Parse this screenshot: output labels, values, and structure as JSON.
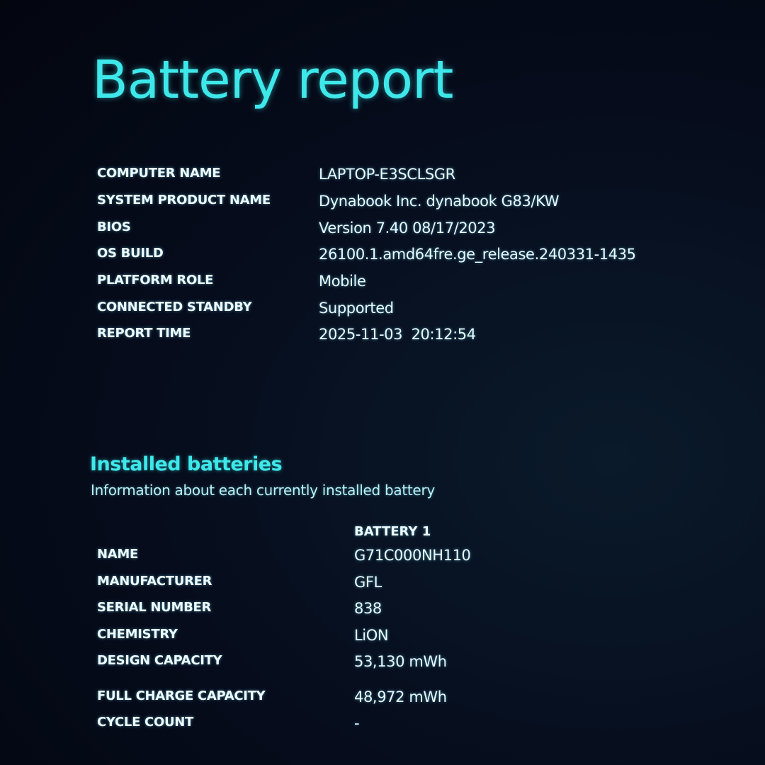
{
  "title": "Battery report",
  "system_info": [
    {
      "label": "COMPUTER NAME",
      "value": "LAPTOP-E3SCLSGR"
    },
    {
      "label": "SYSTEM PRODUCT NAME",
      "value": "Dynabook Inc. dynabook G83/KW"
    },
    {
      "label": "BIOS",
      "value": "Version 7.40 08/17/2023"
    },
    {
      "label": "OS BUILD",
      "value": "26100.1.amd64fre.ge_release.240331-1435"
    },
    {
      "label": "PLATFORM ROLE",
      "value": "Mobile"
    },
    {
      "label": "CONNECTED STANDBY",
      "value": "Supported"
    },
    {
      "label": "REPORT TIME",
      "value": "2025-11-03  20:12:54"
    }
  ],
  "installed_batteries": {
    "heading": "Installed batteries",
    "subheading": "Information about each currently installed battery",
    "column_header": "BATTERY 1",
    "rows": [
      {
        "label": "NAME",
        "value": "G71C000NH110"
      },
      {
        "label": "MANUFACTURER",
        "value": "GFL"
      },
      {
        "label": "SERIAL NUMBER",
        "value": "838"
      },
      {
        "label": "CHEMISTRY",
        "value": "LiON"
      },
      {
        "label": "DESIGN CAPACITY",
        "value": "53,130 mWh"
      },
      {
        "label": "FULL CHARGE CAPACITY",
        "value": "48,972 mWh"
      },
      {
        "label": "CYCLE COUNT",
        "value": "-"
      }
    ]
  },
  "colors": {
    "accent": "#3ee8ea",
    "background": "#060c1c",
    "text": "#e8fbff"
  }
}
